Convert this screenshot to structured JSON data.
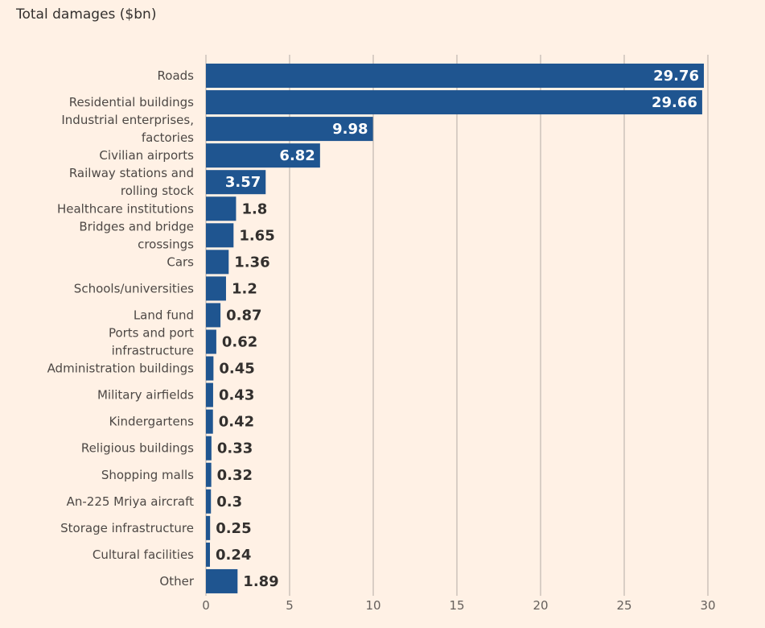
{
  "chart_data": {
    "type": "bar",
    "orientation": "horizontal",
    "title": "Total damages ($bn)",
    "categories": [
      "Roads",
      "Residential buildings",
      "Industrial enterprises, factories",
      "Civilian airports",
      "Railway stations and rolling stock",
      "Healthcare institutions",
      "Bridges and bridge crossings",
      "Cars",
      "Schools/universities",
      "Land fund",
      "Ports and port infrastructure",
      "Administration buildings",
      "Military airfields",
      "Kindergartens",
      "Religious buildings",
      "Shopping malls",
      "An-225 Mriya aircraft",
      "Storage infrastructure",
      "Cultural facilities",
      "Other"
    ],
    "label_lines": [
      [
        "Roads"
      ],
      [
        "Residential buildings"
      ],
      [
        "Industrial enterprises,",
        "factories"
      ],
      [
        "Civilian airports"
      ],
      [
        "Railway stations and",
        "rolling stock"
      ],
      [
        "Healthcare institutions"
      ],
      [
        "Bridges and bridge",
        "crossings"
      ],
      [
        "Cars"
      ],
      [
        "Schools/universities"
      ],
      [
        "Land fund"
      ],
      [
        "Ports and port",
        "infrastructure"
      ],
      [
        "Administration buildings"
      ],
      [
        "Military airfields"
      ],
      [
        "Kindergartens"
      ],
      [
        "Religious buildings"
      ],
      [
        "Shopping malls"
      ],
      [
        "An-225 Mriya aircraft"
      ],
      [
        "Storage infrastructure"
      ],
      [
        "Cultural facilities"
      ],
      [
        "Other"
      ]
    ],
    "values": [
      29.76,
      29.66,
      9.98,
      6.82,
      3.57,
      1.8,
      1.65,
      1.36,
      1.2,
      0.87,
      0.62,
      0.45,
      0.43,
      0.42,
      0.33,
      0.32,
      0.3,
      0.25,
      0.24,
      1.89
    ],
    "value_labels": [
      "29.76",
      "29.66",
      "9.98",
      "6.82",
      "3.57",
      "1.8",
      "1.65",
      "1.36",
      "1.2",
      "0.87",
      "0.62",
      "0.45",
      "0.43",
      "0.42",
      "0.33",
      "0.32",
      "0.3",
      "0.25",
      "0.24",
      "1.89"
    ],
    "xlim": [
      0,
      30
    ],
    "xticks": [
      0,
      5,
      10,
      15,
      20,
      25,
      30
    ],
    "grid": true,
    "colors": {
      "bar": "#1f5590",
      "background": "#fff1e5",
      "grid": "#b3aca5",
      "label_inside": "#ffffff",
      "label_outside": "#33302e"
    }
  }
}
